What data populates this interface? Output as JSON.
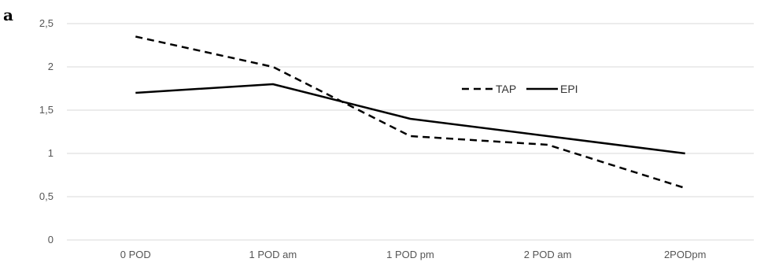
{
  "panel_label": "a",
  "chart_data": {
    "type": "line",
    "categories": [
      "0 POD",
      "1 POD am",
      "1 POD pm",
      "2 POD am",
      "2PODpm"
    ],
    "ylim": [
      0,
      2.5
    ],
    "yticks": [
      "0",
      "0,5",
      "1",
      "1,5",
      "2",
      "2,5"
    ],
    "ytick_values": [
      0,
      0.5,
      1,
      1.5,
      2,
      2.5
    ],
    "grid": true,
    "legend_position": "top-right",
    "series": [
      {
        "name": "TAP",
        "style": "dashed",
        "color": "#000000",
        "values": [
          2.35,
          2.0,
          1.2,
          1.1,
          0.6
        ]
      },
      {
        "name": "EPI",
        "style": "solid",
        "color": "#000000",
        "values": [
          1.7,
          1.8,
          1.4,
          1.2,
          1.0
        ]
      }
    ]
  }
}
